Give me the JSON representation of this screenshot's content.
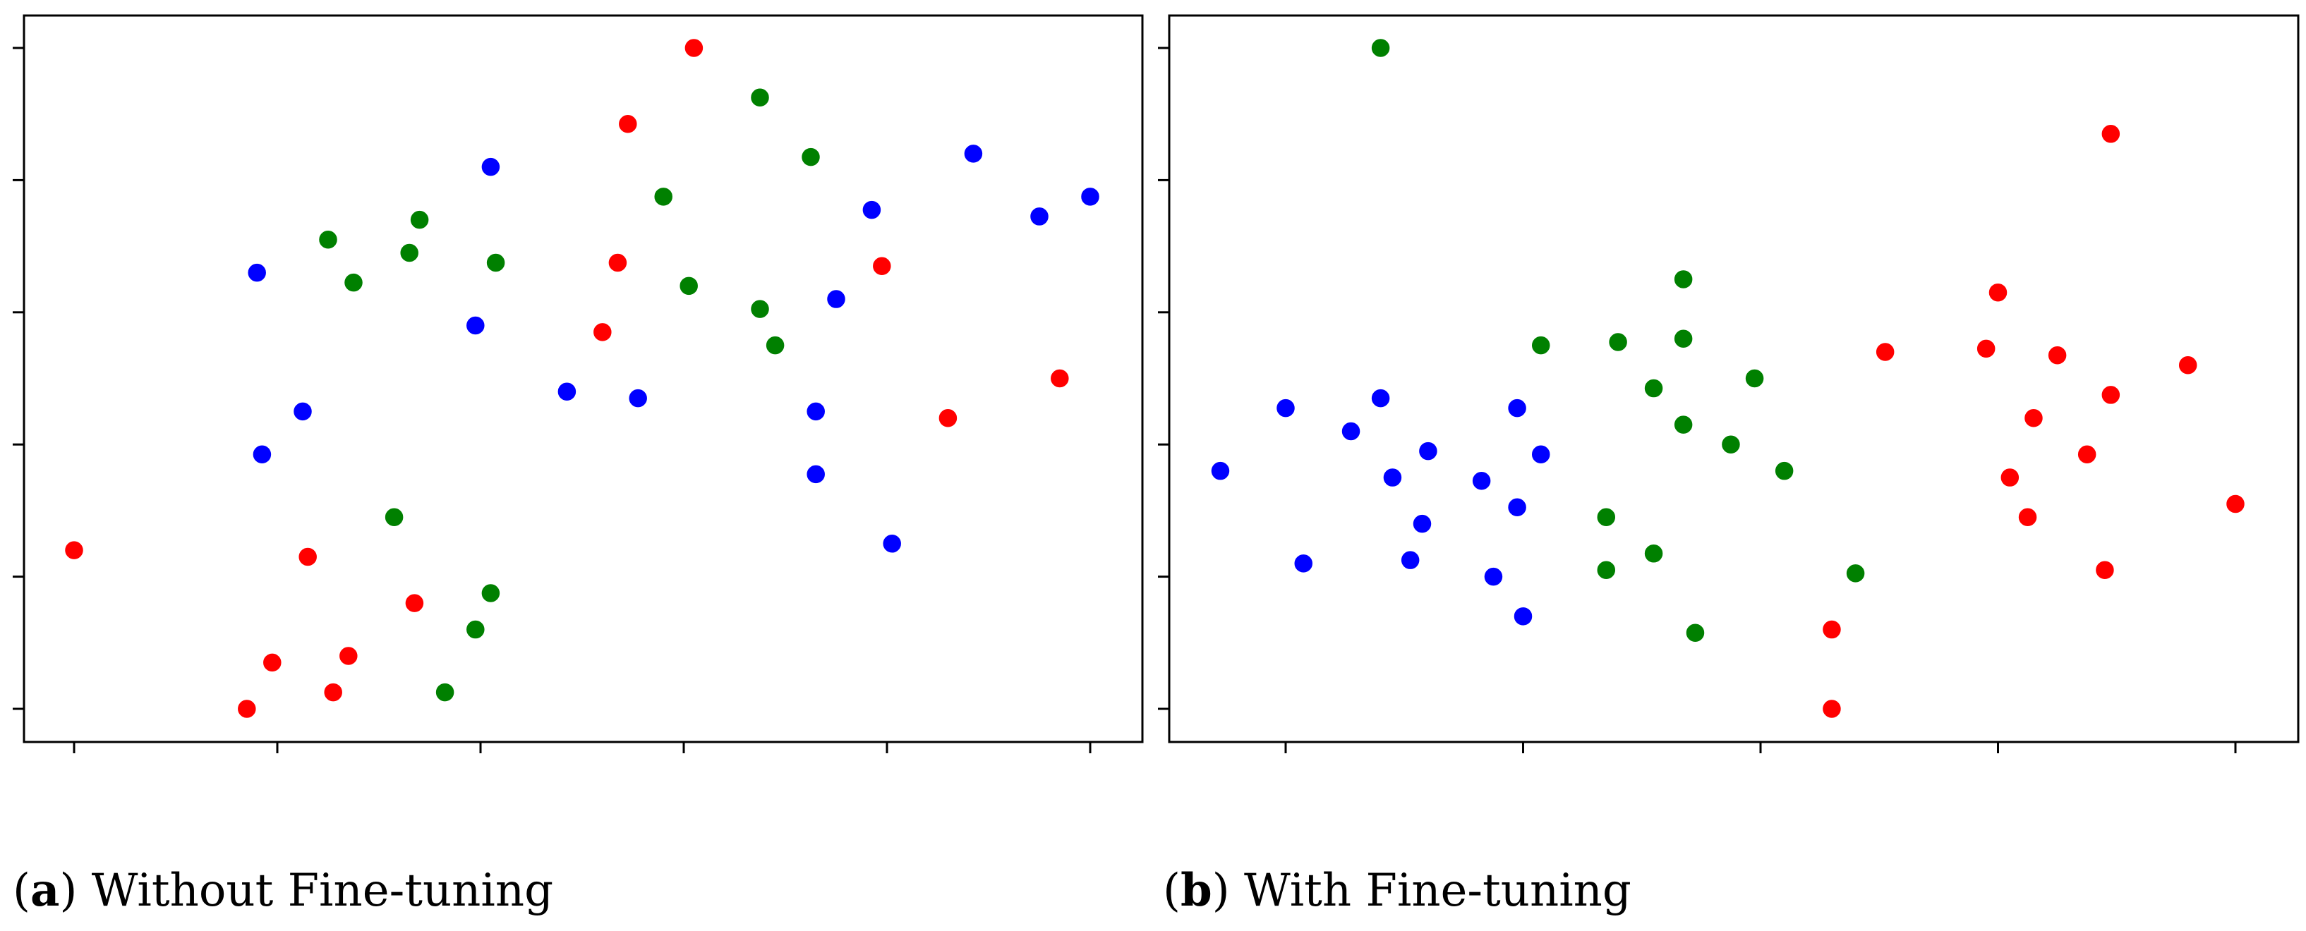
{
  "colors": {
    "red": "#ff0000",
    "green": "#008000",
    "blue": "#0000ff"
  },
  "chart_data": [
    {
      "type": "scatter",
      "caption_letter": "a",
      "caption_text": " Without Fine-tuning",
      "xlim": [
        0,
        10
      ],
      "ylim": [
        0,
        10
      ],
      "xticks": [
        0,
        2,
        4,
        6,
        8,
        10
      ],
      "yticks": [
        0,
        2,
        4,
        6,
        8,
        10
      ],
      "series": [
        {
          "color": "red",
          "points": [
            [
              6.1,
              10.0
            ],
            [
              5.45,
              8.85
            ],
            [
              5.35,
              6.75
            ],
            [
              7.95,
              6.7
            ],
            [
              5.2,
              5.7
            ],
            [
              9.7,
              5.0
            ],
            [
              8.6,
              4.4
            ],
            [
              0.0,
              2.4
            ],
            [
              2.3,
              2.3
            ],
            [
              3.35,
              1.6
            ],
            [
              2.7,
              0.8
            ],
            [
              1.95,
              0.7
            ],
            [
              2.55,
              0.25
            ],
            [
              1.7,
              0.0
            ]
          ]
        },
        {
          "color": "green",
          "points": [
            [
              6.75,
              9.25
            ],
            [
              7.25,
              8.35
            ],
            [
              5.8,
              7.75
            ],
            [
              2.5,
              7.1
            ],
            [
              3.4,
              7.4
            ],
            [
              3.3,
              6.9
            ],
            [
              4.15,
              6.75
            ],
            [
              2.75,
              6.45
            ],
            [
              6.05,
              6.4
            ],
            [
              6.75,
              6.05
            ],
            [
              6.9,
              5.5
            ],
            [
              3.15,
              2.9
            ],
            [
              4.1,
              1.75
            ],
            [
              3.95,
              1.2
            ],
            [
              3.65,
              0.25
            ]
          ]
        },
        {
          "color": "blue",
          "points": [
            [
              4.1,
              8.2
            ],
            [
              8.85,
              8.4
            ],
            [
              7.85,
              7.55
            ],
            [
              10.0,
              7.75
            ],
            [
              9.5,
              7.45
            ],
            [
              1.8,
              6.6
            ],
            [
              7.5,
              6.2
            ],
            [
              3.95,
              5.8
            ],
            [
              4.85,
              4.8
            ],
            [
              5.55,
              4.7
            ],
            [
              7.3,
              4.5
            ],
            [
              2.25,
              4.5
            ],
            [
              1.85,
              3.85
            ],
            [
              7.3,
              3.55
            ],
            [
              8.05,
              2.5
            ]
          ]
        }
      ]
    },
    {
      "type": "scatter",
      "caption_letter": "b",
      "caption_text": " With Fine-tuning",
      "xlim": [
        0,
        8
      ],
      "ylim": [
        0,
        10
      ],
      "xticks": [
        0,
        2,
        4,
        6,
        8
      ],
      "yticks": [
        0,
        2,
        4,
        6,
        8,
        10
      ],
      "series": [
        {
          "color": "red",
          "points": [
            [
              6.95,
              8.7
            ],
            [
              6.0,
              6.3
            ],
            [
              5.05,
              5.4
            ],
            [
              5.9,
              5.45
            ],
            [
              6.5,
              5.35
            ],
            [
              7.6,
              5.2
            ],
            [
              6.95,
              4.75
            ],
            [
              6.3,
              4.4
            ],
            [
              6.75,
              3.85
            ],
            [
              6.1,
              3.5
            ],
            [
              6.25,
              2.9
            ],
            [
              8.0,
              3.1
            ],
            [
              6.9,
              2.1
            ],
            [
              4.6,
              1.2
            ],
            [
              4.6,
              0.0
            ]
          ]
        },
        {
          "color": "green",
          "points": [
            [
              0.8,
              10.0
            ],
            [
              3.35,
              6.5
            ],
            [
              2.15,
              5.5
            ],
            [
              2.8,
              5.55
            ],
            [
              3.35,
              5.6
            ],
            [
              3.95,
              5.0
            ],
            [
              3.1,
              4.85
            ],
            [
              3.35,
              4.3
            ],
            [
              3.75,
              4.0
            ],
            [
              4.2,
              3.6
            ],
            [
              2.7,
              2.9
            ],
            [
              2.7,
              2.1
            ],
            [
              3.1,
              2.35
            ],
            [
              4.8,
              2.05
            ],
            [
              3.45,
              1.15
            ]
          ]
        },
        {
          "color": "blue",
          "points": [
            [
              0.8,
              4.7
            ],
            [
              0.0,
              4.55
            ],
            [
              0.55,
              4.2
            ],
            [
              1.95,
              4.55
            ],
            [
              1.2,
              3.9
            ],
            [
              2.15,
              3.85
            ],
            [
              0.9,
              3.5
            ],
            [
              1.65,
              3.45
            ],
            [
              1.95,
              3.05
            ],
            [
              1.15,
              2.8
            ],
            [
              0.15,
              2.2
            ],
            [
              1.05,
              2.25
            ],
            [
              1.75,
              2.0
            ],
            [
              2.0,
              1.4
            ],
            [
              -0.55,
              3.6
            ]
          ]
        }
      ]
    }
  ]
}
